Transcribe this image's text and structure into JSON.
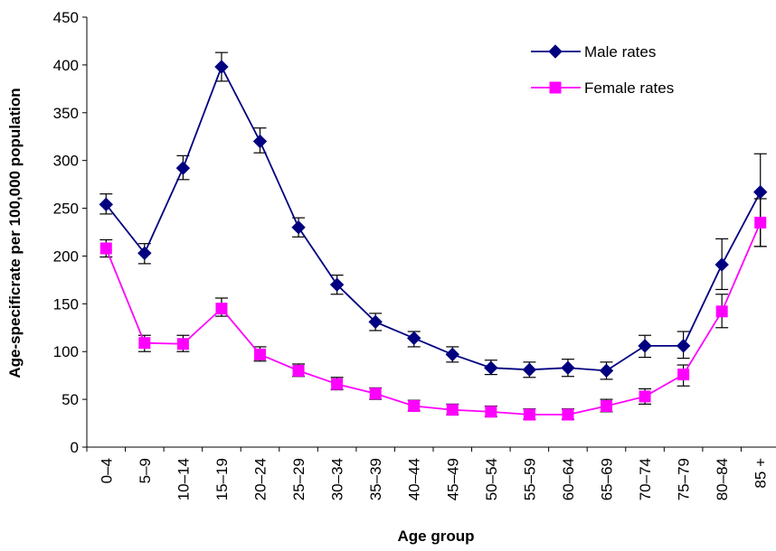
{
  "chart_data": {
    "type": "line",
    "title": "",
    "xlabel": "Age group",
    "ylabel": "Age-specificrate per 100,000 population",
    "ylim": [
      0,
      450
    ],
    "yticks": [
      0,
      50,
      100,
      150,
      200,
      250,
      300,
      350,
      400,
      450
    ],
    "grid": false,
    "legend_position": "top-right",
    "categories": [
      "0–4",
      "5–9",
      "10–14",
      "15–19",
      "20–24",
      "25–29",
      "30–34",
      "35–39",
      "40–44",
      "45–49",
      "50–54",
      "55–59",
      "60–64",
      "65–69",
      "70–74",
      "75–79",
      "80–84",
      "85 +"
    ],
    "series": [
      {
        "name": "Male rates",
        "color": "#000080",
        "marker": "diamond",
        "values": [
          254,
          203,
          292,
          398,
          320,
          230,
          170,
          131,
          114,
          97,
          83,
          81,
          83,
          80,
          106,
          106,
          191,
          267
        ],
        "error_low": [
          244,
          192,
          280,
          383,
          308,
          220,
          160,
          122,
          105,
          89,
          76,
          73,
          74,
          71,
          94,
          93,
          165,
          210
        ],
        "error_high": [
          265,
          213,
          305,
          413,
          334,
          240,
          180,
          140,
          121,
          105,
          91,
          89,
          92,
          89,
          117,
          121,
          218,
          307
        ]
      },
      {
        "name": "Female rates",
        "color": "#FF00FF",
        "marker": "square",
        "values": [
          208,
          109,
          108,
          145,
          97,
          80,
          66,
          56,
          43,
          39,
          37,
          34,
          34,
          43,
          53,
          76,
          142,
          235
        ],
        "error_low": [
          199,
          100,
          100,
          137,
          90,
          74,
          60,
          50,
          38,
          34,
          32,
          29,
          29,
          37,
          45,
          64,
          125,
          210
        ],
        "error_high": [
          217,
          117,
          117,
          156,
          105,
          87,
          73,
          62,
          49,
          45,
          43,
          40,
          40,
          50,
          61,
          86,
          160,
          260
        ]
      }
    ]
  }
}
